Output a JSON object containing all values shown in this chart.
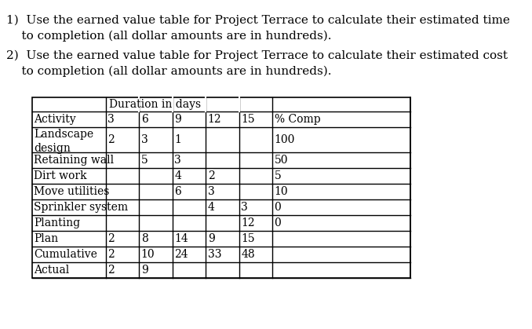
{
  "question1": "1)  Use the earned value table for Project Terrace to calculate their estimated time\n    to completion (all dollar amounts are in hundreds).",
  "question2": "2)  Use the earned value table for Project Terrace to calculate their estimated cost\n    to completion (all dollar amounts are in hundreds).",
  "table": {
    "header_span": "Duration in days",
    "col_headers": [
      "Activity",
      "3",
      "6",
      "9",
      "12",
      "15",
      "% Comp"
    ],
    "rows": [
      [
        "Landscape\ndesign",
        "2",
        "3",
        "1",
        "",
        "",
        "100"
      ],
      [
        "Retaining wall",
        "",
        "5",
        "3",
        "",
        "",
        "50"
      ],
      [
        "Dirt work",
        "",
        "",
        "4",
        "2",
        "",
        "5"
      ],
      [
        "Move utilities",
        "",
        "",
        "6",
        "3",
        "",
        "10"
      ],
      [
        "Sprinkler system",
        "",
        "",
        "",
        "4",
        "3",
        "0"
      ],
      [
        "Planting",
        "",
        "",
        "",
        "",
        "12",
        "0"
      ],
      [
        "Plan",
        "2",
        "8",
        "14",
        "9",
        "15",
        ""
      ],
      [
        "Cumulative",
        "2",
        "10",
        "24",
        "33",
        "48",
        ""
      ],
      [
        "Actual",
        "2",
        "9",
        "",
        "",
        "",
        ""
      ]
    ]
  },
  "bg_color": "#ffffff",
  "text_color": "#000000",
  "font_size": 11,
  "table_font_size": 10
}
